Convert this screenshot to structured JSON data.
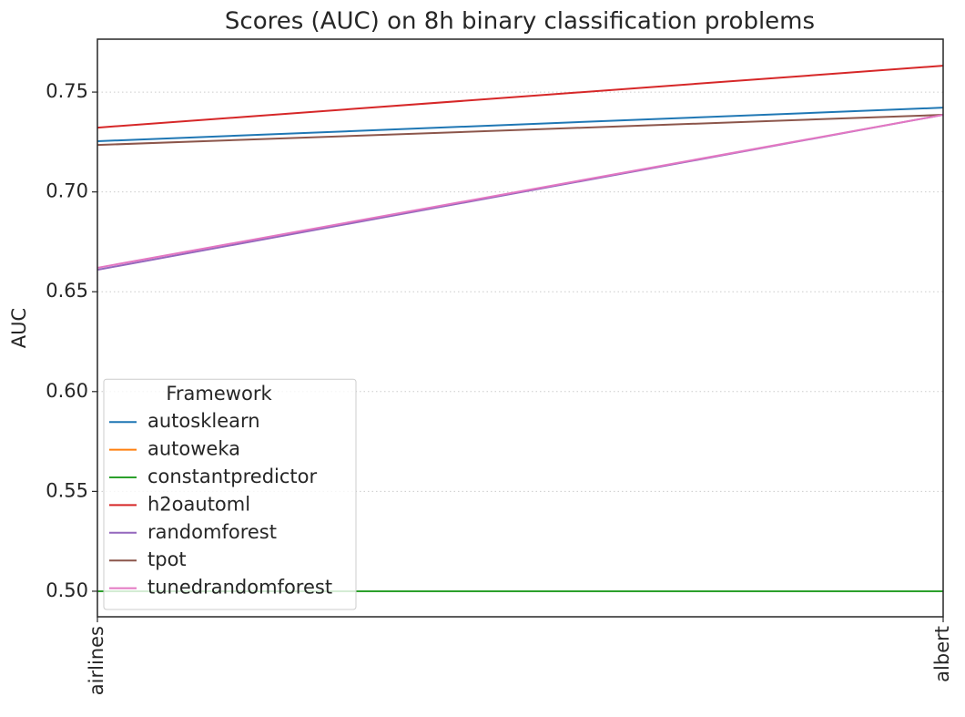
{
  "chart_data": {
    "type": "line",
    "title": "Scores (AUC) on 8h binary classification problems",
    "ylabel": "AUC",
    "categories": [
      "airlines",
      "albert"
    ],
    "series": [
      {
        "name": "autosklearn",
        "color": "#1f77b4",
        "values": [
          0.7254,
          0.7422
        ]
      },
      {
        "name": "autoweka",
        "color": "#ff7f0e",
        "values": [
          null,
          null
        ]
      },
      {
        "name": "constantpredictor",
        "color": "#2ca02c",
        "values": [
          0.5,
          0.5
        ]
      },
      {
        "name": "h2oautoml",
        "color": "#d62728",
        "values": [
          0.7322,
          0.7632
        ]
      },
      {
        "name": "randomforest",
        "color": "#9467bd",
        "values": [
          0.661,
          0.7386
        ]
      },
      {
        "name": "tpot",
        "color": "#8c564b",
        "values": [
          0.7235,
          0.7386
        ]
      },
      {
        "name": "tunedrandomforest",
        "color": "#e377c2",
        "values": [
          0.662,
          0.7386
        ]
      }
    ],
    "ylim": [
      0.4872,
      0.7765
    ],
    "yticks": [
      {
        "value": 0.5,
        "label": "0.50"
      },
      {
        "value": 0.55,
        "label": "0.55"
      },
      {
        "value": 0.6,
        "label": "0.60"
      },
      {
        "value": 0.65,
        "label": "0.65"
      },
      {
        "value": 0.7,
        "label": "0.70"
      },
      {
        "value": 0.75,
        "label": "0.75"
      }
    ],
    "grid": true,
    "legend_title": "Framework",
    "legend_position": "lower left"
  }
}
